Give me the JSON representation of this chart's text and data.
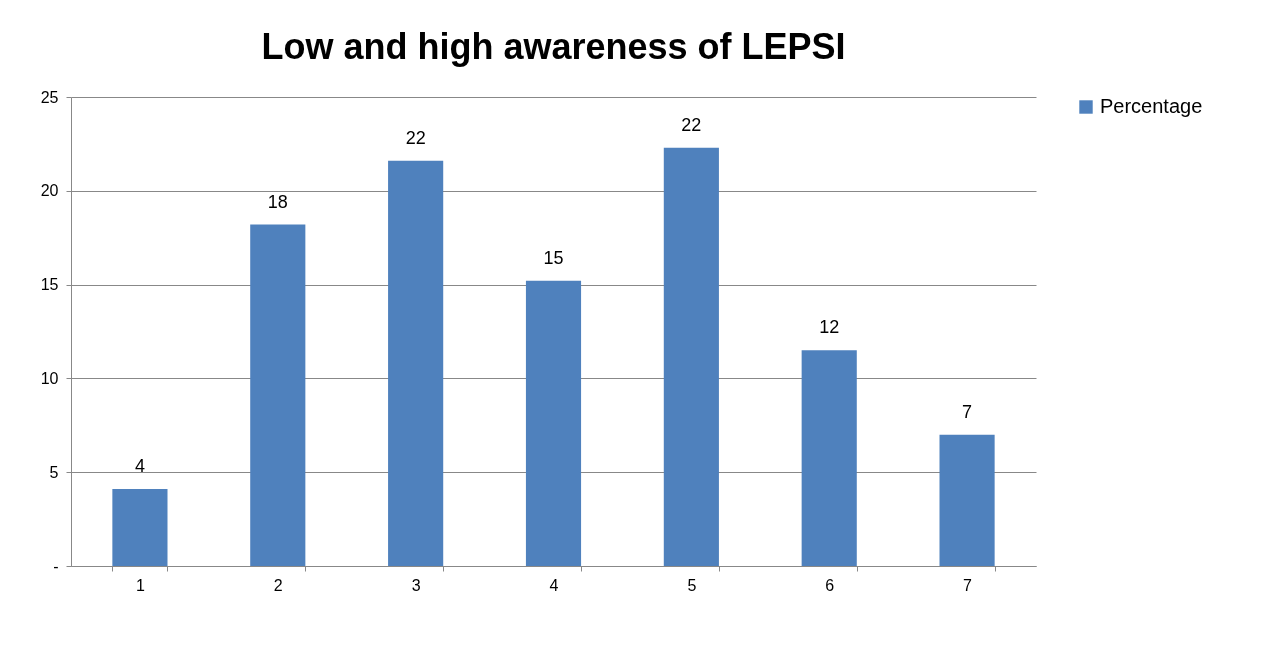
{
  "chart_data": {
    "type": "bar",
    "title": "Low and high awareness of LEPSI",
    "categories": [
      "1",
      "2",
      "3",
      "4",
      "5",
      "6",
      "7"
    ],
    "series": [
      {
        "name": "Percentage",
        "color": "#4f81bd",
        "values": [
          4.1,
          18.2,
          21.6,
          15.2,
          22.3,
          11.5,
          7.0
        ],
        "value_labels": [
          "4",
          "18",
          "22",
          "15",
          "22",
          "12",
          "7"
        ]
      }
    ],
    "ylim": [
      0,
      25
    ],
    "yticks": [
      {
        "value": 0,
        "label": "-"
      },
      5,
      10,
      15,
      20,
      25
    ],
    "grid": "y",
    "legend": "right"
  }
}
